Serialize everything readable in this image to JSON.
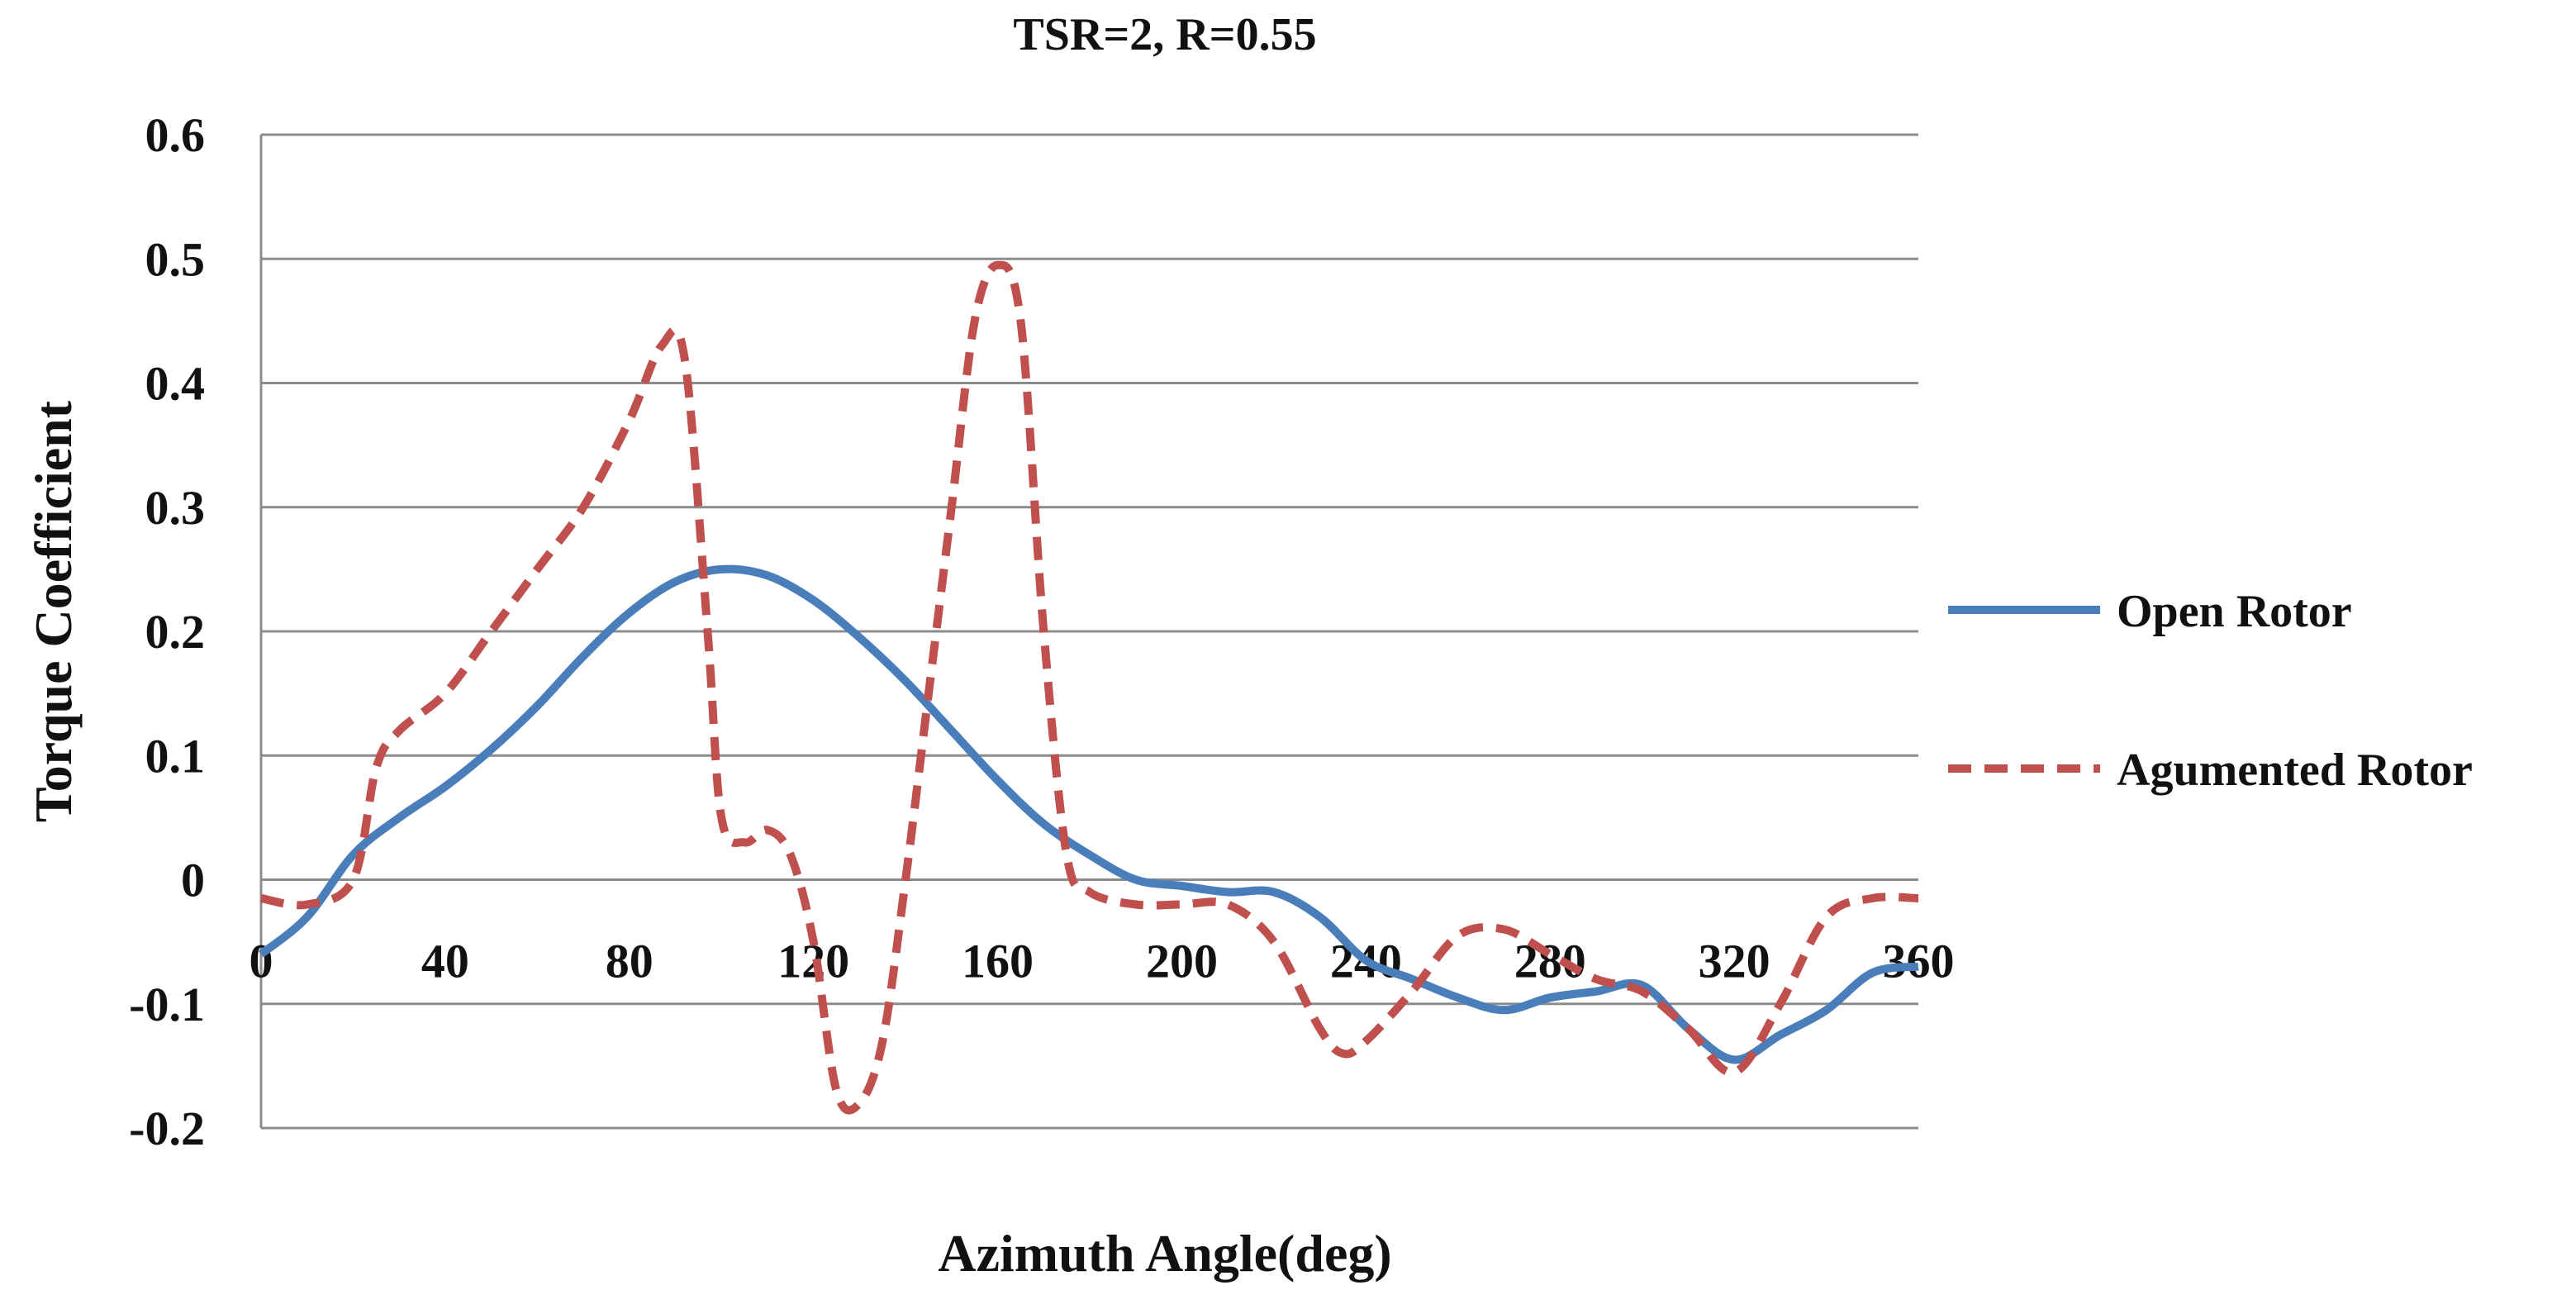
{
  "chart_data": {
    "type": "line",
    "title": "TSR=2, R=0.55",
    "xlabel": "Azimuth Angle(deg)",
    "ylabel": "Torque Coefficient",
    "xlim": [
      0,
      360
    ],
    "ylim": [
      -0.2,
      0.6
    ],
    "x_ticks": [
      "0",
      "40",
      "80",
      "120",
      "160",
      "200",
      "240",
      "280",
      "320",
      "360"
    ],
    "y_ticks": [
      "-0.2",
      "-0.1",
      "0",
      "0.1",
      "0.2",
      "0.3",
      "0.4",
      "0.5",
      "0.6"
    ],
    "grid": "horizontal",
    "legend_position": "right",
    "series": [
      {
        "name": "Open Rotor",
        "color": "#4a7ebb",
        "dash": "solid",
        "points": [
          [
            0,
            -0.06
          ],
          [
            10,
            -0.03
          ],
          [
            20,
            0.02
          ],
          [
            30,
            0.05
          ],
          [
            40,
            0.075
          ],
          [
            50,
            0.105
          ],
          [
            60,
            0.14
          ],
          [
            70,
            0.18
          ],
          [
            80,
            0.215
          ],
          [
            90,
            0.24
          ],
          [
            100,
            0.25
          ],
          [
            110,
            0.245
          ],
          [
            120,
            0.225
          ],
          [
            130,
            0.195
          ],
          [
            140,
            0.16
          ],
          [
            150,
            0.12
          ],
          [
            160,
            0.08
          ],
          [
            170,
            0.045
          ],
          [
            180,
            0.02
          ],
          [
            190,
            0.0
          ],
          [
            200,
            -0.005
          ],
          [
            210,
            -0.01
          ],
          [
            220,
            -0.01
          ],
          [
            230,
            -0.03
          ],
          [
            240,
            -0.065
          ],
          [
            250,
            -0.08
          ],
          [
            260,
            -0.095
          ],
          [
            270,
            -0.105
          ],
          [
            280,
            -0.095
          ],
          [
            290,
            -0.09
          ],
          [
            300,
            -0.085
          ],
          [
            310,
            -0.12
          ],
          [
            320,
            -0.145
          ],
          [
            330,
            -0.125
          ],
          [
            340,
            -0.105
          ],
          [
            350,
            -0.075
          ],
          [
            360,
            -0.07
          ]
        ]
      },
      {
        "name": "Agumented Rotor",
        "color": "#c0504d",
        "dash": "dashed",
        "points": [
          [
            0,
            -0.015
          ],
          [
            10,
            -0.02
          ],
          [
            20,
            0.0
          ],
          [
            25,
            0.09
          ],
          [
            30,
            0.12
          ],
          [
            40,
            0.15
          ],
          [
            50,
            0.2
          ],
          [
            60,
            0.25
          ],
          [
            70,
            0.3
          ],
          [
            80,
            0.37
          ],
          [
            87,
            0.43
          ],
          [
            92,
            0.42
          ],
          [
            97,
            0.2
          ],
          [
            100,
            0.05
          ],
          [
            105,
            0.03
          ],
          [
            110,
            0.04
          ],
          [
            115,
            0.02
          ],
          [
            120,
            -0.05
          ],
          [
            125,
            -0.17
          ],
          [
            130,
            -0.18
          ],
          [
            135,
            -0.13
          ],
          [
            140,
            0.0
          ],
          [
            145,
            0.15
          ],
          [
            150,
            0.3
          ],
          [
            155,
            0.45
          ],
          [
            160,
            0.495
          ],
          [
            165,
            0.45
          ],
          [
            170,
            0.2
          ],
          [
            175,
            0.02
          ],
          [
            180,
            -0.01
          ],
          [
            190,
            -0.02
          ],
          [
            200,
            -0.02
          ],
          [
            210,
            -0.02
          ],
          [
            220,
            -0.05
          ],
          [
            230,
            -0.12
          ],
          [
            235,
            -0.14
          ],
          [
            240,
            -0.13
          ],
          [
            250,
            -0.09
          ],
          [
            260,
            -0.045
          ],
          [
            270,
            -0.04
          ],
          [
            280,
            -0.06
          ],
          [
            290,
            -0.08
          ],
          [
            300,
            -0.09
          ],
          [
            310,
            -0.12
          ],
          [
            320,
            -0.155
          ],
          [
            330,
            -0.1
          ],
          [
            340,
            -0.03
          ],
          [
            350,
            -0.015
          ],
          [
            360,
            -0.015
          ]
        ]
      }
    ]
  }
}
